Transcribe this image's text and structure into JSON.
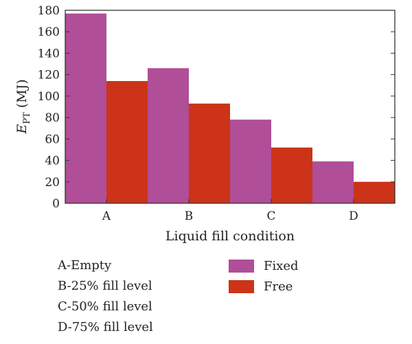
{
  "chart_data": {
    "type": "bar",
    "categories": [
      "A",
      "B",
      "C",
      "D"
    ],
    "series": [
      {
        "name": "Fixed",
        "values": [
          177,
          126,
          78,
          39
        ],
        "color": "#b04e97"
      },
      {
        "name": "Free",
        "values": [
          114,
          93,
          52,
          20
        ],
        "color": "#cc3318"
      }
    ],
    "title": "",
    "xlabel": "Liquid fill condition",
    "ylabel": {
      "main": "E",
      "sub": "PT",
      "unit": " (MJ)"
    },
    "ylim": [
      0,
      180
    ],
    "yticks": [
      0,
      20,
      40,
      60,
      80,
      100,
      120,
      140,
      160,
      180
    ],
    "grid": false,
    "legend_position": "below-right"
  },
  "notes": [
    "A-Empty",
    "B-25% fill level",
    "C-50% fill level",
    "D-75% fill level"
  ]
}
